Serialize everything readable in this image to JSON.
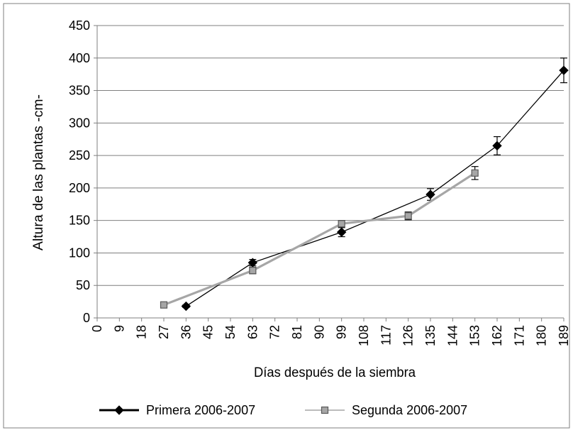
{
  "chart_data": {
    "type": "line",
    "xlabel": "Días después de la siembra",
    "ylabel": "Altura de las plantas -cm-",
    "xlim": [
      0,
      189
    ],
    "ylim": [
      0,
      450
    ],
    "x_ticks": [
      0,
      9,
      18,
      27,
      36,
      45,
      54,
      63,
      72,
      81,
      90,
      99,
      108,
      117,
      126,
      135,
      144,
      153,
      162,
      171,
      180,
      189
    ],
    "y_ticks": [
      0,
      50,
      100,
      150,
      200,
      250,
      300,
      350,
      400,
      450
    ],
    "grid": "horizontal",
    "legend_position": "bottom",
    "series": [
      {
        "name": "Primera  2006-2007",
        "color": "#000000",
        "marker": "diamond",
        "x": [
          36,
          63,
          99,
          135,
          162,
          189
        ],
        "y": [
          18,
          85,
          132,
          190,
          265,
          381
        ],
        "err": [
          2,
          5,
          7,
          9,
          14,
          19
        ]
      },
      {
        "name": "Segunda  2006-2007",
        "color": "#a6a6a6",
        "marker": "square",
        "x": [
          27,
          63,
          99,
          126,
          153
        ],
        "y": [
          20,
          73,
          145,
          157,
          223
        ],
        "err": [
          3,
          5,
          5,
          6,
          10
        ]
      }
    ]
  }
}
